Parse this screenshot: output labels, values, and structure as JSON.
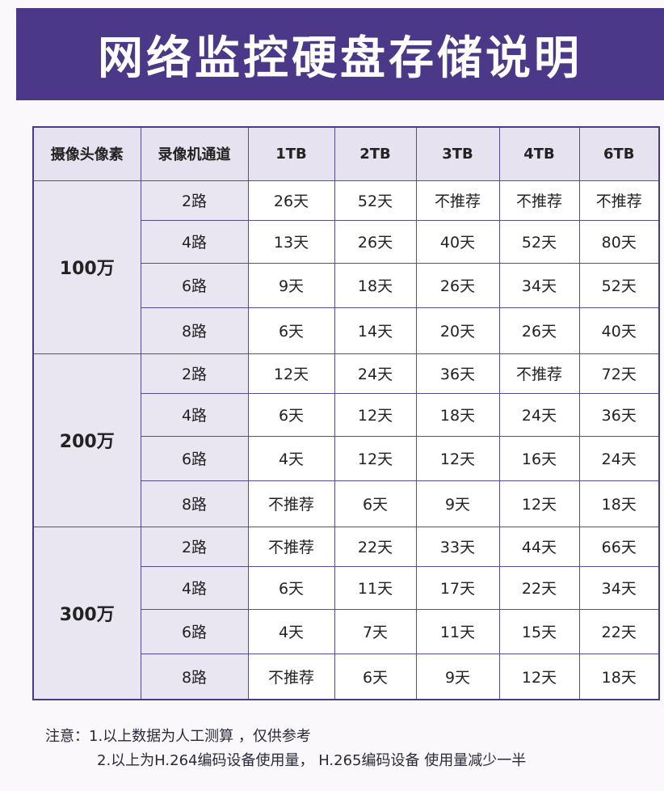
{
  "title": "网络监控硬盘存储说明",
  "table": {
    "headers": [
      "摄像头像素",
      "录像机通道",
      "1TB",
      "2TB",
      "3TB",
      "4TB",
      "6TB"
    ],
    "groups": [
      {
        "resolution": "100万",
        "rows": [
          {
            "channels": "2路",
            "values": [
              "26天",
              "52天",
              "不推荐",
              "不推荐",
              "不推荐"
            ]
          },
          {
            "channels": "4路",
            "values": [
              "13天",
              "26天",
              "40天",
              "52天",
              "80天"
            ]
          },
          {
            "channels": "6路",
            "values": [
              "9天",
              "18天",
              "26天",
              "34天",
              "52天"
            ]
          },
          {
            "channels": "8路",
            "values": [
              "6天",
              "14天",
              "20天",
              "26天",
              "40天"
            ]
          }
        ]
      },
      {
        "resolution": "200万",
        "rows": [
          {
            "channels": "2路",
            "values": [
              "12天",
              "24天",
              "36天",
              "不推荐",
              "72天"
            ]
          },
          {
            "channels": "4路",
            "values": [
              "6天",
              "12天",
              "18天",
              "24天",
              "36天"
            ]
          },
          {
            "channels": "6路",
            "values": [
              "4天",
              "12天",
              "12天",
              "16天",
              "24天"
            ]
          },
          {
            "channels": "8路",
            "values": [
              "不推荐",
              "6天",
              "9天",
              "12天",
              "18天"
            ]
          }
        ]
      },
      {
        "resolution": "300万",
        "rows": [
          {
            "channels": "2路",
            "values": [
              "不推荐",
              "22天",
              "33天",
              "44天",
              "66天"
            ]
          },
          {
            "channels": "4路",
            "values": [
              "6天",
              "11天",
              "17天",
              "22天",
              "34天"
            ]
          },
          {
            "channels": "6路",
            "values": [
              "4天",
              "7天",
              "11天",
              "15天",
              "22天"
            ]
          },
          {
            "channels": "8路",
            "values": [
              "不推荐",
              "6天",
              "9天",
              "12天",
              "18天"
            ]
          }
        ]
      }
    ]
  },
  "notes": {
    "line1": "注意：1.以上数据为人工测算 ，仅供参考",
    "line2": "2.以上为H.264编码设备使用量， H.265编码设备 使用量减少一半"
  }
}
